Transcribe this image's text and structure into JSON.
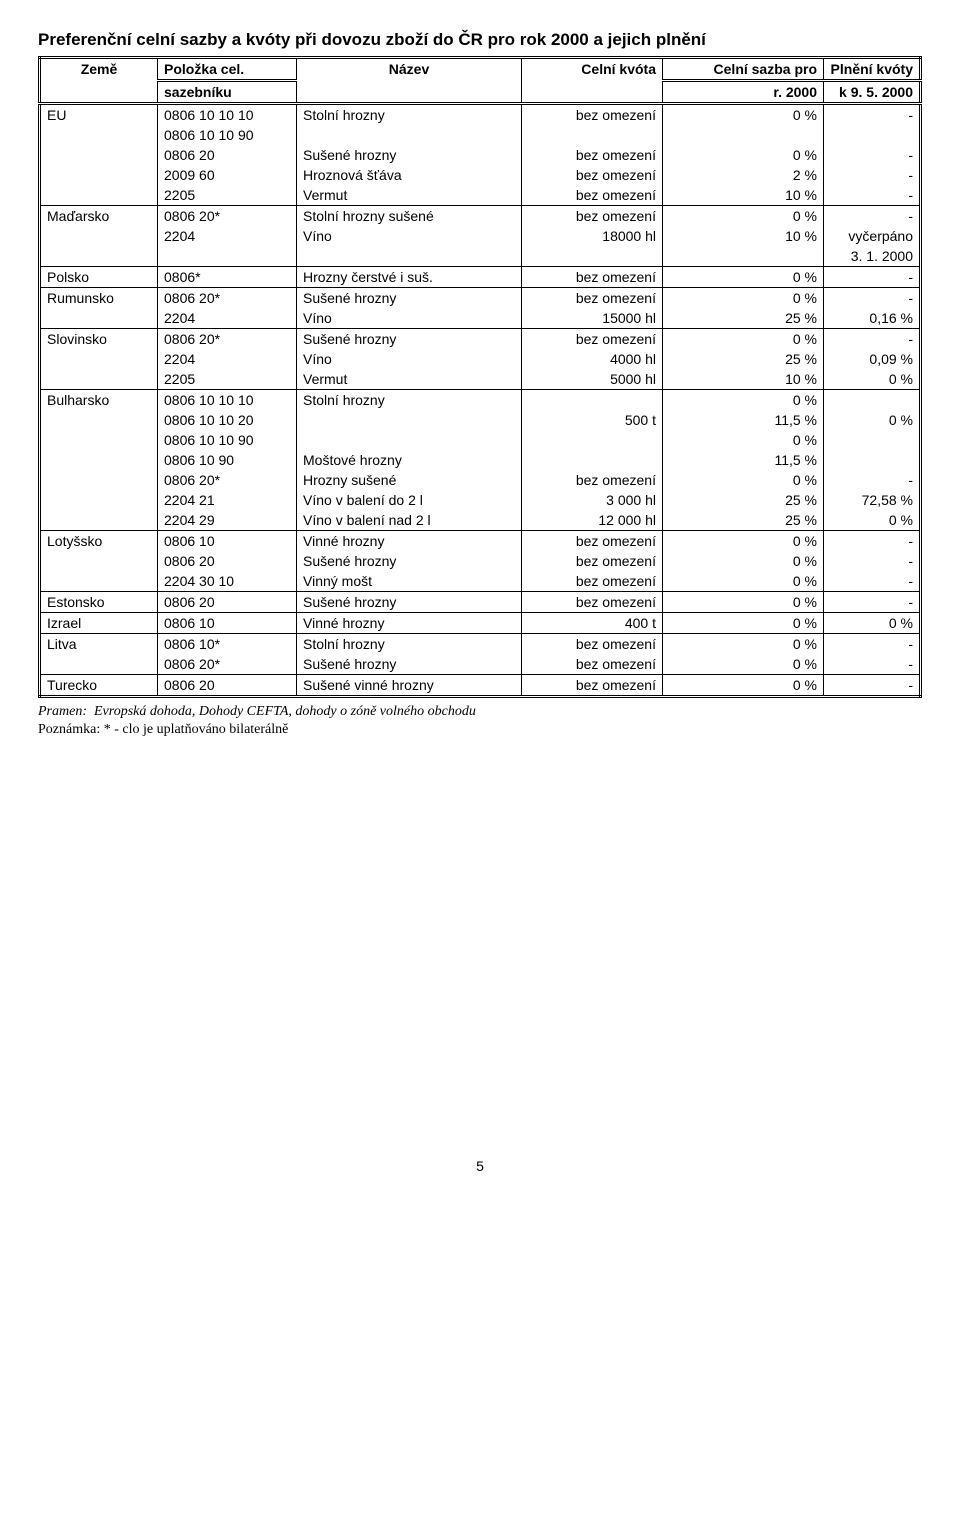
{
  "title": "Preferenční celní sazby a kvóty při dovozu zboží do ČR pro rok 2000 a jejich plnění",
  "headers": {
    "c1a": "Země",
    "c2a": "Položka cel.",
    "c3a": "Název",
    "c4a": "Celní kvóta",
    "c5a": "Celní sazba pro",
    "c6a": "Plnění kvóty",
    "c2b": "sazebníku",
    "c5b": "r. 2000",
    "c6b": "k 9. 5. 2000"
  },
  "rows": [
    {
      "gt": true,
      "c1": "EU",
      "c2": "0806 10 10 10",
      "c3": "Stolní hrozny",
      "c4": "bez omezení",
      "c5": "0 %",
      "c6": "-"
    },
    {
      "c1": "",
      "c2": "0806 10 10 90",
      "c3": "",
      "c4": "",
      "c5": "",
      "c6": ""
    },
    {
      "c1": "",
      "c2": "0806 20",
      "c3": "Sušené hrozny",
      "c4": "bez omezení",
      "c5": "0 %",
      "c6": "-"
    },
    {
      "c1": "",
      "c2": "2009 60",
      "c3": "Hroznová šťáva",
      "c4": "bez omezení",
      "c5": "2 %",
      "c6": "-"
    },
    {
      "c1": "",
      "c2": "2205",
      "c3": "Vermut",
      "c4": "bez omezení",
      "c5": "10 %",
      "c6": "-"
    },
    {
      "gt": true,
      "c1": "Maďarsko",
      "c2": "0806 20*",
      "c3": "Stolní hrozny sušené",
      "c4": "bez omezení",
      "c5": "0 %",
      "c6": "-"
    },
    {
      "c1": "",
      "c2": "2204",
      "c3": "Víno",
      "c4": "18000 hl",
      "c5": "10 %",
      "c6": "vyčerpáno"
    },
    {
      "c1": "",
      "c2": "",
      "c3": "",
      "c4": "",
      "c5": "",
      "c6": "3. 1. 2000"
    },
    {
      "gt": true,
      "c1": "Polsko",
      "c2": "0806*",
      "c3": "Hrozny čerstvé i suš.",
      "c4": "bez omezení",
      "c5": "0 %",
      "c6": "-"
    },
    {
      "gt": true,
      "c1": "Rumunsko",
      "c2": "0806 20*",
      "c3": "Sušené hrozny",
      "c4": "bez omezení",
      "c5": "0 %",
      "c6": "-"
    },
    {
      "c1": "",
      "c2": "2204",
      "c3": "Víno",
      "c4": "15000 hl",
      "c5": "25 %",
      "c6": "0,16 %"
    },
    {
      "gt": true,
      "c1": "Slovinsko",
      "c2": "0806 20*",
      "c3": "Sušené hrozny",
      "c4": "bez omezení",
      "c5": "0 %",
      "c6": "-"
    },
    {
      "c1": "",
      "c2": "2204",
      "c3": "Víno",
      "c4": "4000 hl",
      "c5": "25 %",
      "c6": "0,09 %"
    },
    {
      "c1": "",
      "c2": "2205",
      "c3": "Vermut",
      "c4": "5000 hl",
      "c5": "10 %",
      "c6": "0 %"
    },
    {
      "gt": true,
      "c1": "Bulharsko",
      "c2": "0806 10 10 10",
      "c3": "Stolní hrozny",
      "c4": "",
      "c5": "0 %",
      "c6": ""
    },
    {
      "c1": "",
      "c2": "0806 10 10 20",
      "c3": "",
      "c4": "500 t",
      "c5": "11,5 %",
      "c6": "0 %"
    },
    {
      "c1": "",
      "c2": "0806 10 10 90",
      "c3": "",
      "c4": "",
      "c5": "0 %",
      "c6": ""
    },
    {
      "c1": "",
      "c2": "0806 10 90",
      "c3": "Moštové hrozny",
      "c4": "",
      "c5": "11,5 %",
      "c6": ""
    },
    {
      "c1": "",
      "c2": "0806 20*",
      "c3": "Hrozny sušené",
      "c4": "bez omezení",
      "c5": "0 %",
      "c6": "-"
    },
    {
      "c1": "",
      "c2": "2204 21",
      "c3": "Víno v balení do 2 l",
      "c4": "3 000 hl",
      "c5": "25 %",
      "c6": "72,58 %"
    },
    {
      "c1": "",
      "c2": "2204 29",
      "c3": "Víno v balení nad 2 l",
      "c4": "12 000 hl",
      "c5": "25 %",
      "c6": "0 %"
    },
    {
      "gt": true,
      "c1": "Lotyšsko",
      "c2": "0806 10",
      "c3": "Vinné hrozny",
      "c4": "bez omezení",
      "c5": "0 %",
      "c6": "-"
    },
    {
      "c1": "",
      "c2": "0806 20",
      "c3": "Sušené hrozny",
      "c4": "bez omezení",
      "c5": "0 %",
      "c6": "-"
    },
    {
      "c1": "",
      "c2": "2204 30 10",
      "c3": "Vinný mošt",
      "c4": "bez omezení",
      "c5": "0 %",
      "c6": "-"
    },
    {
      "gt": true,
      "c1": "Estonsko",
      "c2": "0806 20",
      "c3": "Sušené hrozny",
      "c4": "bez omezení",
      "c5": "0 %",
      "c6": "-"
    },
    {
      "gt": true,
      "c1": "Izrael",
      "c2": "0806 10",
      "c3": "Vinné hrozny",
      "c4": "400 t",
      "c5": "0 %",
      "c6": "0 %"
    },
    {
      "gt": true,
      "c1": "Litva",
      "c2": "0806 10*",
      "c3": "Stolní hrozny",
      "c4": "bez omezení",
      "c5": "0 %",
      "c6": "-"
    },
    {
      "c1": "",
      "c2": "0806 20*",
      "c3": "Sušené hrozny",
      "c4": "bez omezení",
      "c5": "0 %",
      "c6": "-"
    },
    {
      "gt": true,
      "last": true,
      "c1": "Turecko",
      "c2": "0806 20",
      "c3": "Sušené vinné hrozny",
      "c4": "bez omezení",
      "c5": "0 %",
      "c6": "-"
    }
  ],
  "source_label": "Pramen:",
  "source_text": "Evropská dohoda, Dohody CEFTA, dohody o zóně volného obchodu",
  "note": "Poznámka: * - clo je uplatňováno bilaterálně",
  "page_number": "5"
}
